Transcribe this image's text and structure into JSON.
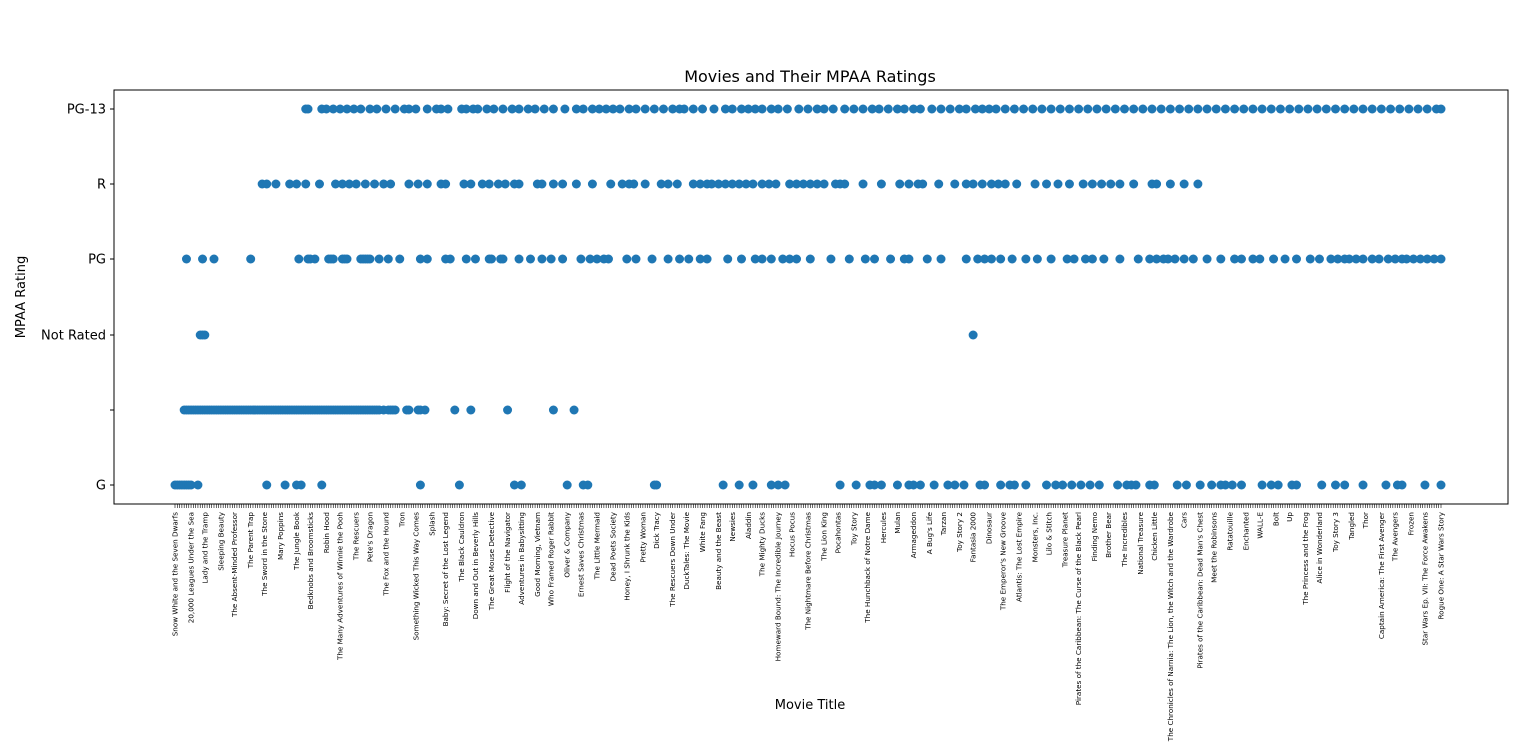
{
  "chart_data": {
    "type": "scatter",
    "title": "Movies and Their MPAA Ratings",
    "xlabel": "Movie Title",
    "ylabel": "MPAA Rating",
    "y_categories": [
      "G",
      "",
      "Not Rated",
      "PG",
      "R",
      "PG-13"
    ],
    "grid": false,
    "legend": "none",
    "marker_color": "#1f77b4",
    "categories": [
      "Snow White and the Seven Dwarfs",
      "20,000 Leagues Under the Sea",
      "Lady and the Tramp",
      "Sleeping Beauty",
      "The Absent-Minded Professor",
      "The Parent Trap",
      "The Sword in the Stone",
      "Mary Poppins",
      "The Jungle Book",
      "Bedknobs and Broomsticks",
      "Robin Hood",
      "The Many Adventures of Winnie the Pooh",
      "The Rescuers",
      "Pete's Dragon",
      "The Fox and the Hound",
      "Tron",
      "Something Wicked This Way Comes",
      "Splash",
      "Baby: Secret of the Lost Legend",
      "The Black Cauldron",
      "Down and Out in Beverly Hills",
      "The Great Mouse Detective",
      "Flight of the Navigator",
      "Adventures in Babysitting",
      "Good Morning, Vietnam",
      "Who Framed Roger Rabbit",
      "Oliver & Company",
      "Ernest Saves Christmas",
      "The Little Mermaid",
      "Dead Poets Society",
      "Honey, I Shrunk the Kids",
      "Pretty Woman",
      "Dick Tracy",
      "The Rescuers Down Under",
      "DuckTales: The Movie",
      "White Fang",
      "Beauty and the Beast",
      "Newsies",
      "Aladdin",
      "The Mighty Ducks",
      "Homeward Bound: The Incredible Journey",
      "Hocus Pocus",
      "The Nightmare Before Christmas",
      "The Lion King",
      "Pocahontas",
      "Toy Story",
      "The Hunchback of Notre Dame",
      "Hercules",
      "Mulan",
      "Armageddon",
      "A Bug's Life",
      "Tarzan",
      "Toy Story 2",
      "Fantasia 2000",
      "Dinosaur",
      "The Emperor's New Groove",
      "Atlantis: The Lost Empire",
      "Monsters, Inc.",
      "Lilo & Stitch",
      "Treasure Planet",
      "Pirates of the Caribbean: The Curse of the Black Pearl",
      "Finding Nemo",
      "Brother Bear",
      "The Incredibles",
      "National Treasure",
      "Chicken Little",
      "The Chronicles of Narnia: The Lion, the Witch and the Wardrobe",
      "Cars",
      "Pirates of the Caribbean: Dead Man's Chest",
      "Meet the Robinsons",
      "Ratatouille",
      "Enchanted",
      "WALL-E",
      "Bolt",
      "Up",
      "The Princess and the Frog",
      "Alice in Wonderland",
      "Toy Story 3",
      "Tangled",
      "Thor",
      "Captain America: The First Avenger",
      "The Avengers",
      "Frozen",
      "Star Wars Ep. VII: The Force Awakens",
      "Rogue One: A Star Wars Story"
    ],
    "points_note": "Each point is one movie; x is the movie index on the x axis, y is the rating category.",
    "series": [
      {
        "rating": "G",
        "x": [
          0,
          1,
          2,
          3,
          4,
          5,
          6,
          7,
          10,
          40,
          48,
          53,
          55,
          64,
          107,
          124,
          148,
          151,
          171,
          178,
          180,
          209,
          210,
          239,
          246,
          252,
          260,
          263,
          266,
          290,
          297,
          303,
          305,
          308,
          315,
          320,
          322,
          325,
          331,
          337,
          340,
          344,
          351,
          353,
          360,
          364,
          366,
          371,
          380,
          384,
          387,
          391,
          395,
          399,
          403,
          411,
          415,
          417,
          419,
          425,
          427,
          437,
          441,
          447,
          452,
          456,
          458,
          461,
          465,
          474,
          478,
          481,
          487,
          489,
          500,
          506,
          510,
          518,
          528,
          533,
          535,
          545,
          552
        ],
        "y": "G"
      },
      {
        "rating": "",
        "x": [
          4,
          5,
          6,
          7,
          8,
          9,
          10,
          11,
          12,
          13,
          14,
          15,
          16,
          17,
          18,
          19,
          20,
          21,
          22,
          23,
          24,
          25,
          26,
          27,
          28,
          29,
          30,
          31,
          32,
          33,
          34,
          35,
          36,
          37,
          38,
          39,
          40,
          41,
          42,
          43,
          44,
          45,
          46,
          47,
          48,
          49,
          50,
          51,
          52,
          53,
          54,
          55,
          56,
          57,
          58,
          59,
          60,
          61,
          62,
          63,
          64,
          65,
          66,
          67,
          68,
          69,
          70,
          71,
          72,
          73,
          74,
          75,
          76,
          77,
          78,
          79,
          80,
          81,
          82,
          83,
          84,
          85,
          86,
          87,
          88,
          89,
          91,
          93,
          94,
          95,
          96,
          101,
          102,
          106,
          107,
          109,
          122,
          129,
          145,
          165,
          174
        ],
        "y": ""
      },
      {
        "rating": "Not Rated",
        "x": [
          11,
          12,
          13,
          348
        ],
        "y": "Not Rated"
      },
      {
        "rating": "PG",
        "x": [
          5,
          12,
          17,
          33,
          54,
          58,
          59,
          61,
          67,
          68,
          69,
          73,
          74,
          75,
          81,
          82,
          83,
          84,
          85,
          89,
          93,
          98,
          107,
          110,
          118,
          120,
          127,
          131,
          137,
          138,
          142,
          143,
          150,
          155,
          160,
          164,
          169,
          177,
          181,
          184,
          187,
          189,
          197,
          201,
          208,
          215,
          220,
          224,
          229,
          232,
          241,
          247,
          253,
          256,
          260,
          265,
          268,
          271,
          277,
          286,
          294,
          301,
          305,
          312,
          318,
          320,
          328,
          334,
          345,
          350,
          353,
          356,
          360,
          365,
          371,
          376,
          382,
          389,
          392,
          397,
          400,
          405,
          412,
          420,
          425,
          428,
          431,
          433,
          436,
          440,
          444,
          450,
          456,
          462,
          465,
          470,
          473,
          479,
          484,
          489,
          495,
          499,
          504,
          507,
          510,
          512,
          515,
          518,
          522,
          525,
          529,
          532,
          535,
          537,
          540,
          543,
          546,
          549,
          552
        ],
        "y": "PG"
      },
      {
        "rating": "R",
        "x": [
          38,
          40,
          44,
          50,
          53,
          57,
          63,
          70,
          73,
          76,
          79,
          83,
          87,
          91,
          94,
          102,
          106,
          110,
          116,
          118,
          126,
          129,
          134,
          137,
          141,
          144,
          148,
          150,
          158,
          160,
          165,
          169,
          175,
          182,
          190,
          195,
          198,
          200,
          205,
          212,
          215,
          219,
          226,
          229,
          232,
          234,
          237,
          240,
          243,
          246,
          249,
          252,
          256,
          259,
          262,
          268,
          271,
          274,
          277,
          280,
          283,
          288,
          290,
          292,
          300,
          308,
          316,
          320,
          324,
          326,
          333,
          340,
          345,
          348,
          352,
          356,
          359,
          362,
          367,
          375,
          380,
          385,
          390,
          396,
          400,
          404,
          408,
          412,
          418,
          426,
          428,
          434,
          440,
          446
        ],
        "y": "R"
      },
      {
        "rating": "PG-13",
        "x": [
          57,
          58,
          64,
          66,
          69,
          72,
          75,
          78,
          81,
          85,
          88,
          92,
          96,
          100,
          102,
          105,
          110,
          114,
          116,
          119,
          125,
          127,
          130,
          132,
          136,
          139,
          143,
          147,
          150,
          154,
          157,
          161,
          165,
          170,
          175,
          178,
          182,
          185,
          188,
          191,
          194,
          198,
          201,
          205,
          209,
          213,
          217,
          220,
          222,
          226,
          230,
          235,
          240,
          243,
          247,
          250,
          253,
          256,
          260,
          263,
          267,
          272,
          276,
          280,
          283,
          287,
          292,
          296,
          300,
          304,
          307,
          311,
          315,
          318,
          322,
          325,
          330,
          334,
          338,
          342,
          345,
          349,
          352,
          355,
          358,
          362,
          366,
          370,
          374,
          378,
          382,
          386,
          390,
          394,
          398,
          402,
          406,
          410,
          414,
          418,
          422,
          426,
          430,
          434,
          438,
          442,
          446,
          450,
          454,
          458,
          462,
          466,
          470,
          474,
          478,
          482,
          486,
          490,
          494,
          498,
          502,
          506,
          510,
          514,
          518,
          522,
          526,
          530,
          534,
          538,
          542,
          546,
          550,
          552
        ],
        "y": "PG-13"
      }
    ],
    "x_count": 553
  }
}
